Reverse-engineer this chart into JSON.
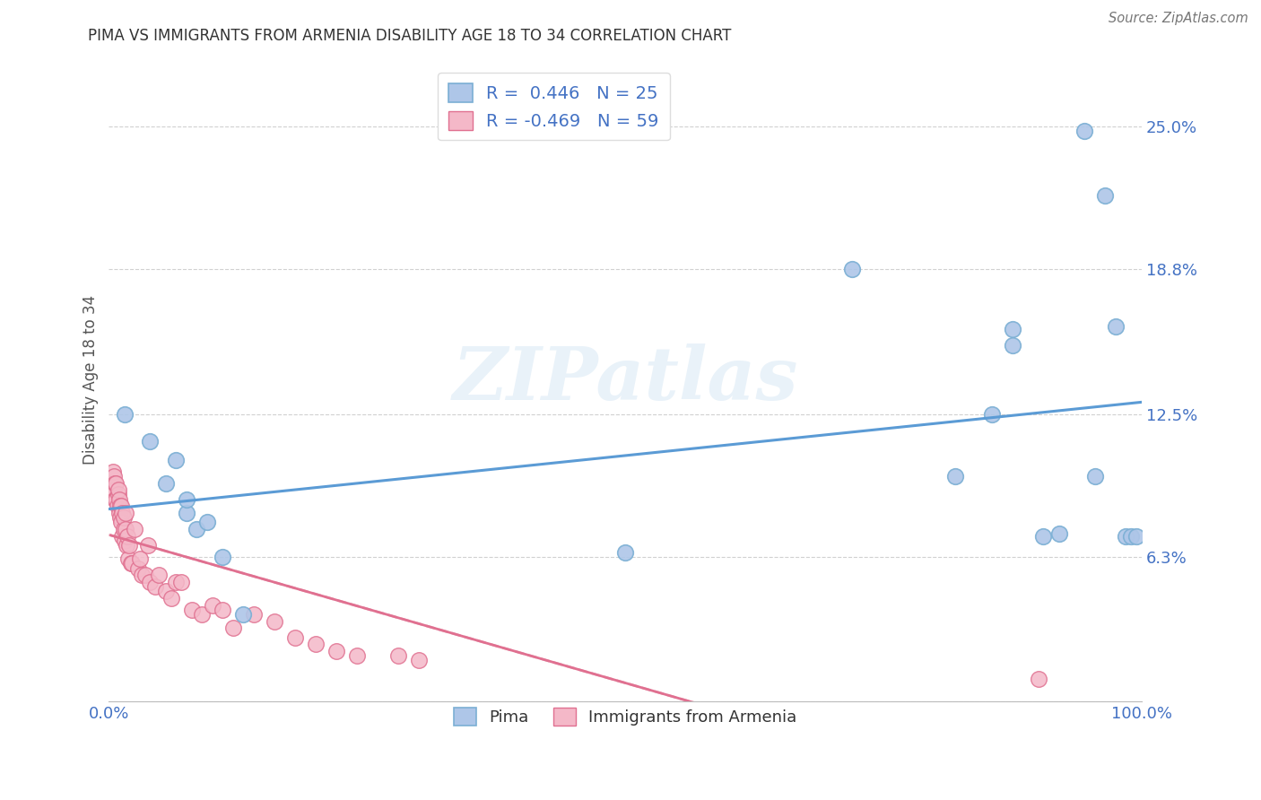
{
  "title": "PIMA VS IMMIGRANTS FROM ARMENIA DISABILITY AGE 18 TO 34 CORRELATION CHART",
  "source": "Source: ZipAtlas.com",
  "ylabel": "Disability Age 18 to 34",
  "watermark": "ZIPatlas",
  "pima_color": "#aec6e8",
  "pima_edge_color": "#7bafd4",
  "armenia_color": "#f4b8c8",
  "armenia_edge_color": "#e07090",
  "pima_line_color": "#5b9bd5",
  "armenia_line_color": "#e07090",
  "pima_R": 0.446,
  "pima_N": 25,
  "armenia_R": -0.469,
  "armenia_N": 59,
  "xlim": [
    0.0,
    1.0
  ],
  "ylim": [
    0.0,
    0.28
  ],
  "xticks": [
    0.0,
    0.25,
    0.5,
    0.75,
    1.0
  ],
  "xticklabels": [
    "0.0%",
    "",
    "",
    "",
    "100.0%"
  ],
  "ytick_vals": [
    0.0,
    0.063,
    0.125,
    0.188,
    0.25
  ],
  "ytick_labels": [
    "",
    "6.3%",
    "12.5%",
    "18.8%",
    "25.0%"
  ],
  "pima_x": [
    0.015,
    0.04,
    0.055,
    0.065,
    0.075,
    0.075,
    0.085,
    0.095,
    0.11,
    0.13,
    0.5,
    0.72,
    0.82,
    0.855,
    0.875,
    0.875,
    0.905,
    0.92,
    0.945,
    0.955,
    0.965,
    0.975,
    0.985,
    0.99,
    0.995
  ],
  "pima_y": [
    0.125,
    0.113,
    0.095,
    0.105,
    0.082,
    0.088,
    0.075,
    0.078,
    0.063,
    0.038,
    0.065,
    0.188,
    0.098,
    0.125,
    0.162,
    0.155,
    0.072,
    0.073,
    0.248,
    0.098,
    0.22,
    0.163,
    0.072,
    0.072,
    0.072
  ],
  "armenia_x": [
    0.002,
    0.003,
    0.004,
    0.004,
    0.005,
    0.005,
    0.006,
    0.006,
    0.007,
    0.007,
    0.008,
    0.009,
    0.009,
    0.01,
    0.01,
    0.011,
    0.011,
    0.012,
    0.012,
    0.013,
    0.013,
    0.014,
    0.014,
    0.015,
    0.016,
    0.016,
    0.017,
    0.018,
    0.019,
    0.02,
    0.021,
    0.022,
    0.025,
    0.028,
    0.03,
    0.032,
    0.035,
    0.038,
    0.04,
    0.045,
    0.048,
    0.055,
    0.06,
    0.065,
    0.07,
    0.08,
    0.09,
    0.1,
    0.11,
    0.12,
    0.14,
    0.16,
    0.18,
    0.2,
    0.22,
    0.24,
    0.28,
    0.3,
    0.9
  ],
  "armenia_y": [
    0.095,
    0.092,
    0.09,
    0.1,
    0.092,
    0.098,
    0.088,
    0.095,
    0.088,
    0.095,
    0.085,
    0.09,
    0.092,
    0.082,
    0.088,
    0.08,
    0.085,
    0.078,
    0.085,
    0.072,
    0.082,
    0.075,
    0.08,
    0.07,
    0.075,
    0.082,
    0.068,
    0.072,
    0.062,
    0.068,
    0.06,
    0.06,
    0.075,
    0.058,
    0.062,
    0.055,
    0.055,
    0.068,
    0.052,
    0.05,
    0.055,
    0.048,
    0.045,
    0.052,
    0.052,
    0.04,
    0.038,
    0.042,
    0.04,
    0.032,
    0.038,
    0.035,
    0.028,
    0.025,
    0.022,
    0.02,
    0.02,
    0.018,
    0.01
  ],
  "title_color": "#333333",
  "axis_label_color": "#555555",
  "tick_color_blue": "#4472c4",
  "grid_color": "#cccccc",
  "background_color": "#ffffff",
  "legend_label_pima": "Pima",
  "legend_label_armenia": "Immigrants from Armenia",
  "legend_R_color": "#333333",
  "legend_N_color": "#4472c4",
  "source_text": "Source: ZipAtlas.com"
}
